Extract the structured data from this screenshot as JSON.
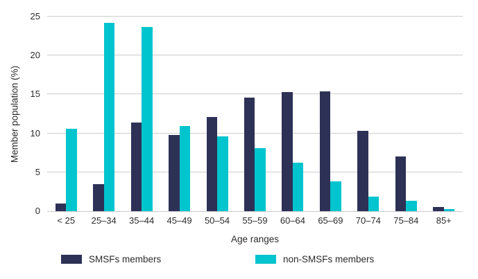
{
  "chart_data": {
    "type": "bar",
    "title": "",
    "categories": [
      "< 25",
      "25–34",
      "35–44",
      "45–49",
      "50–54",
      "55–59",
      "60–64",
      "65–69",
      "70–74",
      "75–84",
      "85+"
    ],
    "series": [
      {
        "name": "SMSFs members",
        "color": "#2d3156",
        "values": [
          1.0,
          3.5,
          11.4,
          9.8,
          12.1,
          14.6,
          15.3,
          15.4,
          10.3,
          7.0,
          0.5
        ]
      },
      {
        "name": "non-SMSFs members",
        "color": "#00c4ce",
        "values": [
          10.6,
          24.2,
          23.7,
          10.9,
          9.6,
          8.1,
          6.2,
          3.8,
          1.9,
          1.3,
          0.3
        ]
      }
    ],
    "xlabel": "Age ranges",
    "ylabel": "Member population (%)",
    "ylim": [
      0,
      25
    ],
    "yticks": [
      0,
      5,
      10,
      15,
      20,
      25
    ],
    "grid": true,
    "gridline_color": "#cccccc",
    "legend_position": "bottom"
  }
}
